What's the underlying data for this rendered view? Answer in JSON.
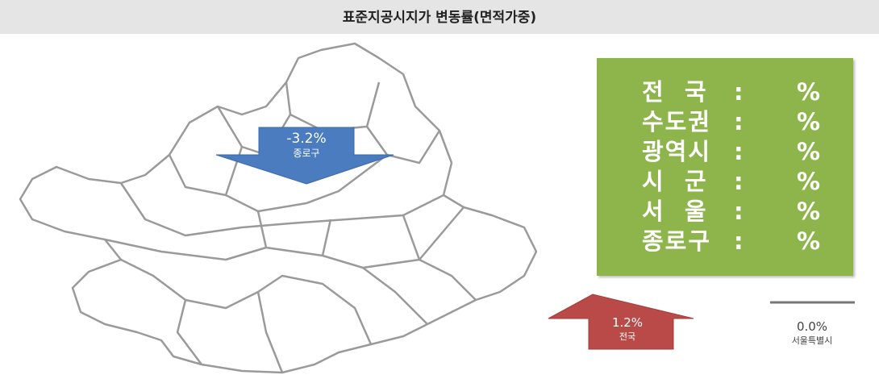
{
  "header": {
    "title": "표준지공시지가 변동률(면적가중)"
  },
  "map": {
    "district_arrow": {
      "value": "-3.2%",
      "name": "종로구"
    },
    "nation_arrow": {
      "value": "1.2%",
      "name": "전국"
    },
    "seoul_marker": {
      "value": "0.0%",
      "name": "서울특별시"
    }
  },
  "summary": {
    "rows": [
      {
        "label": "전  국",
        "colon": ":",
        "unit": "%"
      },
      {
        "label": "수도권",
        "colon": ":",
        "unit": "%"
      },
      {
        "label": "광역시",
        "colon": ":",
        "unit": "%"
      },
      {
        "label": "시  군",
        "colon": ":",
        "unit": "%"
      },
      {
        "label": "서  울",
        "colon": ":",
        "unit": "%"
      },
      {
        "label": "종로구",
        "colon": ":",
        "unit": "%"
      }
    ]
  }
}
